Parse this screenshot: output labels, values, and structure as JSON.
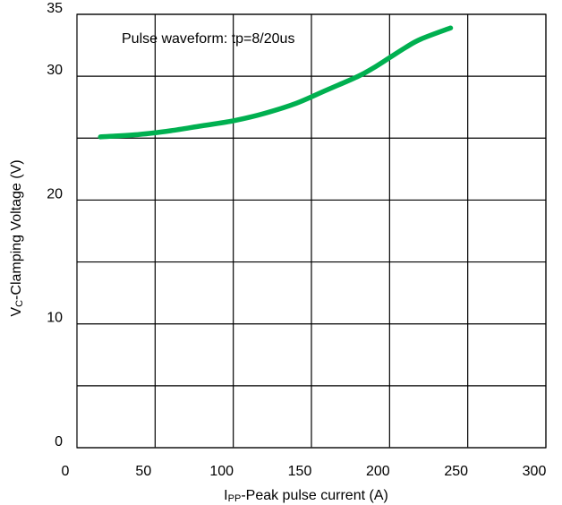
{
  "chart_data": {
    "type": "line",
    "annotation": "Pulse waveform: tp=8/20us",
    "xlabel": {
      "prefix": "I",
      "subscript": "PP",
      "rest": "-Peak pulse current (A)"
    },
    "ylabel": {
      "prefix": "V",
      "subscript": "C",
      "rest": "-Clamping Voltage (V)"
    },
    "xlim": [
      0,
      300
    ],
    "ylim": [
      0,
      35
    ],
    "x_ticks": [
      0,
      50,
      100,
      150,
      200,
      250,
      300
    ],
    "y_gridlines": [
      0,
      5,
      10,
      15,
      20,
      25,
      30,
      35
    ],
    "y_tick_labels": [
      {
        "value": 0,
        "text": "0"
      },
      {
        "value": 10,
        "text": "10"
      },
      {
        "value": 20,
        "text": "20"
      },
      {
        "value": 30,
        "text": "30"
      },
      {
        "value": 35,
        "text": "35"
      }
    ],
    "grid": true,
    "series": [
      {
        "color": "#00b050",
        "x": [
          15,
          40,
          60,
          80,
          100,
          120,
          140,
          160,
          180,
          190,
          200,
          210,
          220,
          239
        ],
        "y": [
          25.1,
          25.3,
          25.6,
          26.0,
          26.4,
          27.0,
          27.8,
          28.9,
          30.0,
          30.7,
          31.5,
          32.3,
          33.0,
          33.9
        ]
      }
    ]
  }
}
